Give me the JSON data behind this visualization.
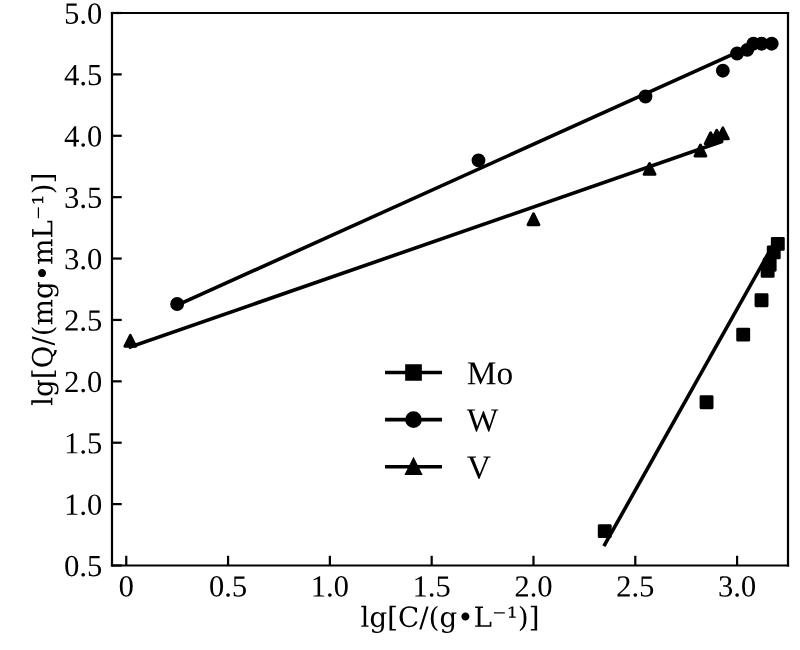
{
  "chart_data": {
    "type": "scatter",
    "xlabel": "lg[C/(g•L⁻¹)]",
    "ylabel": "lg[Q/(mg•mL⁻¹)]",
    "xlim": [
      -0.07,
      3.25
    ],
    "ylim": [
      0.5,
      5.0
    ],
    "xticks": [
      {
        "value": 0,
        "label": "0"
      },
      0.5,
      {
        "value": 1,
        "label": "1.0"
      },
      1.5,
      {
        "value": 2,
        "label": "2.0"
      },
      2.5,
      {
        "value": 3,
        "label": "3.0"
      }
    ],
    "yticks": [
      0.5,
      {
        "value": 1,
        "label": "1.0"
      },
      1.5,
      {
        "value": 2,
        "label": "2.0"
      },
      2.5,
      {
        "value": 3,
        "label": "3.0"
      },
      3.5,
      {
        "value": 4,
        "label": "4.0"
      },
      4.5,
      {
        "value": 5,
        "label": "5.0"
      }
    ],
    "grid": false,
    "legend": "lower center",
    "series": [
      {
        "name": "Mo",
        "color": "#000000",
        "marker": "square",
        "x": [
          2.35,
          2.85,
          3.03,
          3.12,
          3.15,
          3.16,
          3.18,
          3.2
        ],
        "values": [
          0.78,
          1.83,
          2.38,
          2.66,
          2.9,
          2.95,
          3.05,
          3.12
        ]
      },
      {
        "name": "W",
        "color": "#000000",
        "marker": "circle",
        "x": [
          0.25,
          1.73,
          2.55,
          2.93,
          3.0,
          3.05,
          3.08,
          3.12,
          3.17
        ],
        "values": [
          2.63,
          3.8,
          4.32,
          4.53,
          4.67,
          4.7,
          4.75,
          4.75,
          4.75
        ]
      },
      {
        "name": "V",
        "color": "#000000",
        "marker": "triangle",
        "x": [
          0.02,
          2.0,
          2.57,
          2.82,
          2.87,
          2.9,
          2.93
        ],
        "values": [
          2.33,
          3.32,
          3.73,
          3.88,
          3.98,
          4.0,
          4.02
        ]
      },
      {
        "type": "line",
        "color": "#000000",
        "marker": "none",
        "line_style": "solid",
        "x": [
          2.35,
          3.18
        ],
        "values": [
          0.67,
          3.12
        ]
      },
      {
        "type": "line",
        "color": "#000000",
        "marker": "none",
        "line_style": "solid",
        "x": [
          0.25,
          3.0
        ],
        "values": [
          2.62,
          4.68
        ]
      },
      {
        "type": "line",
        "color": "#000000",
        "marker": "none",
        "line_style": "solid",
        "x": [
          0.02,
          2.92
        ],
        "values": [
          2.28,
          3.95
        ]
      }
    ]
  }
}
